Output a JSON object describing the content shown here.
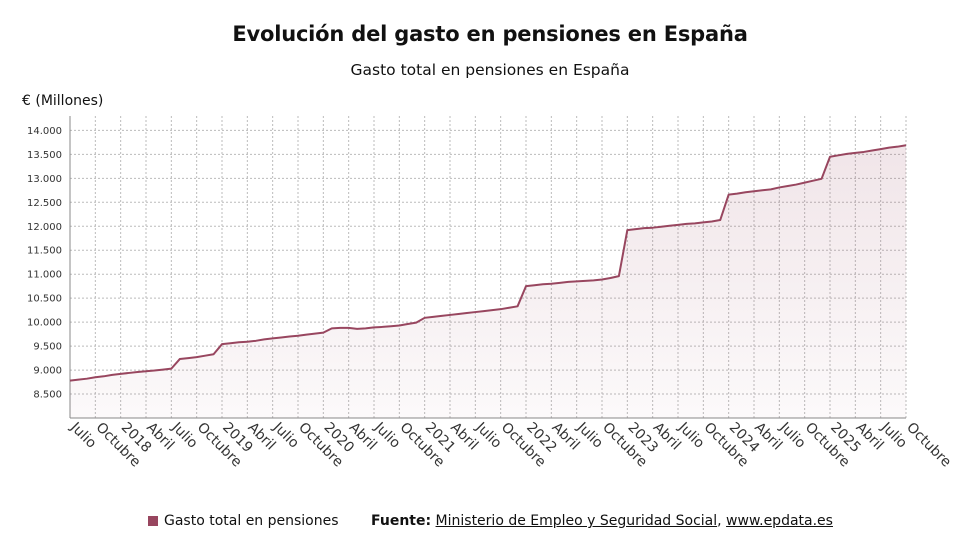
{
  "title": "Evolución del gasto en pensiones en España",
  "subtitle": "Gasto total en pensiones en España",
  "legend_label": "Gasto total en pensiones",
  "source": {
    "label": "Fuente:",
    "org": "Ministerio de Empleo y Seguridad Social",
    "separator": ",",
    "site": "www.epdata.es"
  },
  "colors": {
    "line": "#98465f",
    "fill": "#98465f",
    "grid": "#bbbbbb"
  },
  "chart_data": {
    "type": "area",
    "ylabel": "€ (Millones)",
    "ylim": [
      8000,
      14300
    ],
    "yticks": [
      8500,
      9000,
      9500,
      10000,
      10500,
      11000,
      11500,
      12000,
      12500,
      13000,
      13500,
      14000
    ],
    "ytick_labels": [
      "8.500",
      "9.000",
      "9.500",
      "10.000",
      "10.500",
      "11.000",
      "11.500",
      "12.000",
      "12.500",
      "13.000",
      "13.500",
      "14.000"
    ],
    "x_start": "2017-07",
    "x_end": "2025-10",
    "x_ticks": [
      {
        "date": "2017-07",
        "label": "Julio"
      },
      {
        "date": "2017-10",
        "label": "Octubre"
      },
      {
        "date": "2018-01",
        "label": "2018"
      },
      {
        "date": "2018-04",
        "label": "Abril"
      },
      {
        "date": "2018-07",
        "label": "Julio"
      },
      {
        "date": "2018-10",
        "label": "Octubre"
      },
      {
        "date": "2019-01",
        "label": "2019"
      },
      {
        "date": "2019-04",
        "label": "Abril"
      },
      {
        "date": "2019-07",
        "label": "Julio"
      },
      {
        "date": "2019-10",
        "label": "Octubre"
      },
      {
        "date": "2020-01",
        "label": "2020"
      },
      {
        "date": "2020-04",
        "label": "Abril"
      },
      {
        "date": "2020-07",
        "label": "Julio"
      },
      {
        "date": "2020-10",
        "label": "Octubre"
      },
      {
        "date": "2021-01",
        "label": "2021"
      },
      {
        "date": "2021-04",
        "label": "Abril"
      },
      {
        "date": "2021-07",
        "label": "Julio"
      },
      {
        "date": "2021-10",
        "label": "Octubre"
      },
      {
        "date": "2022-01",
        "label": "2022"
      },
      {
        "date": "2022-04",
        "label": "Abril"
      },
      {
        "date": "2022-07",
        "label": "Julio"
      },
      {
        "date": "2022-10",
        "label": "Octubre"
      },
      {
        "date": "2023-01",
        "label": "2023"
      },
      {
        "date": "2023-04",
        "label": "Abril"
      },
      {
        "date": "2023-07",
        "label": "Julio"
      },
      {
        "date": "2023-10",
        "label": "Octubre"
      },
      {
        "date": "2024-01",
        "label": "2024"
      },
      {
        "date": "2024-04",
        "label": "Abril"
      },
      {
        "date": "2024-07",
        "label": "Julio"
      },
      {
        "date": "2024-10",
        "label": "Octubre"
      },
      {
        "date": "2025-01",
        "label": "2025"
      },
      {
        "date": "2025-04",
        "label": "Abril"
      },
      {
        "date": "2025-07",
        "label": "Julio"
      },
      {
        "date": "2025-10",
        "label": "Octubre"
      }
    ],
    "series": [
      {
        "name": "Gasto total en pensiones",
        "points": [
          [
            "2017-07",
            8780
          ],
          [
            "2017-08",
            8800
          ],
          [
            "2017-09",
            8820
          ],
          [
            "2017-10",
            8850
          ],
          [
            "2017-11",
            8870
          ],
          [
            "2017-12",
            8900
          ],
          [
            "2018-01",
            8920
          ],
          [
            "2018-02",
            8940
          ],
          [
            "2018-03",
            8960
          ],
          [
            "2018-04",
            8975
          ],
          [
            "2018-05",
            8990
          ],
          [
            "2018-06",
            9010
          ],
          [
            "2018-07",
            9030
          ],
          [
            "2018-08",
            9230
          ],
          [
            "2018-09",
            9250
          ],
          [
            "2018-10",
            9270
          ],
          [
            "2018-11",
            9300
          ],
          [
            "2018-12",
            9330
          ],
          [
            "2019-01",
            9540
          ],
          [
            "2019-02",
            9560
          ],
          [
            "2019-03",
            9580
          ],
          [
            "2019-04",
            9590
          ],
          [
            "2019-05",
            9610
          ],
          [
            "2019-06",
            9640
          ],
          [
            "2019-07",
            9660
          ],
          [
            "2019-08",
            9680
          ],
          [
            "2019-09",
            9700
          ],
          [
            "2019-10",
            9715
          ],
          [
            "2019-11",
            9740
          ],
          [
            "2019-12",
            9760
          ],
          [
            "2020-01",
            9780
          ],
          [
            "2020-02",
            9870
          ],
          [
            "2020-03",
            9880
          ],
          [
            "2020-04",
            9880
          ],
          [
            "2020-05",
            9860
          ],
          [
            "2020-06",
            9870
          ],
          [
            "2020-07",
            9890
          ],
          [
            "2020-08",
            9900
          ],
          [
            "2020-09",
            9915
          ],
          [
            "2020-10",
            9930
          ],
          [
            "2020-11",
            9960
          ],
          [
            "2020-12",
            9990
          ],
          [
            "2021-01",
            10090
          ],
          [
            "2021-02",
            10110
          ],
          [
            "2021-03",
            10130
          ],
          [
            "2021-04",
            10150
          ],
          [
            "2021-05",
            10170
          ],
          [
            "2021-06",
            10190
          ],
          [
            "2021-07",
            10210
          ],
          [
            "2021-08",
            10230
          ],
          [
            "2021-09",
            10250
          ],
          [
            "2021-10",
            10270
          ],
          [
            "2021-11",
            10300
          ],
          [
            "2021-12",
            10330
          ],
          [
            "2022-01",
            10750
          ],
          [
            "2022-02",
            10770
          ],
          [
            "2022-03",
            10790
          ],
          [
            "2022-04",
            10800
          ],
          [
            "2022-05",
            10820
          ],
          [
            "2022-06",
            10840
          ],
          [
            "2022-07",
            10850
          ],
          [
            "2022-08",
            10860
          ],
          [
            "2022-09",
            10870
          ],
          [
            "2022-10",
            10890
          ],
          [
            "2022-11",
            10920
          ],
          [
            "2022-12",
            10960
          ],
          [
            "2023-01",
            11920
          ],
          [
            "2023-02",
            11940
          ],
          [
            "2023-03",
            11960
          ],
          [
            "2023-04",
            11970
          ],
          [
            "2023-05",
            11990
          ],
          [
            "2023-06",
            12010
          ],
          [
            "2023-07",
            12030
          ],
          [
            "2023-08",
            12050
          ],
          [
            "2023-09",
            12060
          ],
          [
            "2023-10",
            12080
          ],
          [
            "2023-11",
            12100
          ],
          [
            "2023-12",
            12130
          ],
          [
            "2024-01",
            12660
          ],
          [
            "2024-02",
            12680
          ],
          [
            "2024-03",
            12710
          ],
          [
            "2024-04",
            12730
          ],
          [
            "2024-05",
            12750
          ],
          [
            "2024-06",
            12770
          ],
          [
            "2024-07",
            12810
          ],
          [
            "2024-08",
            12840
          ],
          [
            "2024-09",
            12870
          ],
          [
            "2024-10",
            12910
          ],
          [
            "2024-11",
            12950
          ],
          [
            "2024-12",
            12990
          ],
          [
            "2025-01",
            13450
          ],
          [
            "2025-02",
            13480
          ],
          [
            "2025-03",
            13510
          ],
          [
            "2025-04",
            13530
          ],
          [
            "2025-05",
            13550
          ],
          [
            "2025-06",
            13580
          ],
          [
            "2025-07",
            13610
          ],
          [
            "2025-08",
            13640
          ],
          [
            "2025-09",
            13660
          ],
          [
            "2025-10",
            13690
          ]
        ]
      }
    ],
    "grid": true,
    "legend_position": "bottom-left"
  }
}
